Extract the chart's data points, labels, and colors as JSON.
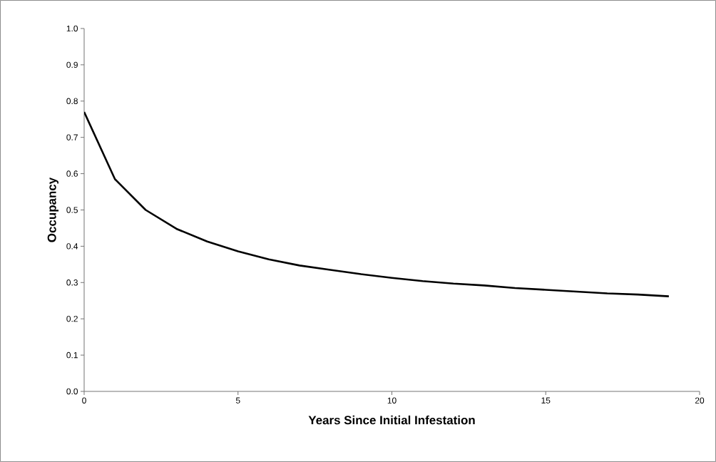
{
  "chart_data": {
    "type": "line",
    "xlabel": "Years Since Initial Infestation",
    "ylabel": "Occupancy",
    "x": [
      0,
      1,
      2,
      3,
      4,
      5,
      6,
      7,
      8,
      9,
      10,
      11,
      12,
      13,
      14,
      15,
      16,
      17,
      18,
      19
    ],
    "series": [
      {
        "color": "#000000",
        "values": [
          0.77,
          0.585,
          0.5,
          0.448,
          0.413,
          0.386,
          0.364,
          0.347,
          0.335,
          0.323,
          0.313,
          0.304,
          0.297,
          0.292,
          0.285,
          0.28,
          0.275,
          0.27,
          0.267,
          0.262
        ]
      }
    ],
    "xlim": [
      0,
      20
    ],
    "ylim": [
      0,
      1.0
    ],
    "xticks": [
      0,
      5,
      10,
      15,
      20
    ],
    "yticks": [
      {
        "value": 0,
        "label": "0.0"
      },
      {
        "value": 0.1,
        "label": "0.1"
      },
      {
        "value": 0.2,
        "label": "0.2"
      },
      {
        "value": 0.3,
        "label": "0.3"
      },
      {
        "value": 0.4,
        "label": "0.4"
      },
      {
        "value": 0.5,
        "label": "0.5"
      },
      {
        "value": 0.6,
        "label": "0.6"
      },
      {
        "value": 0.7,
        "label": "0.7"
      },
      {
        "value": 0.8,
        "label": "0.8"
      },
      {
        "value": 0.9,
        "label": "0.9"
      },
      {
        "value": 1.0,
        "label": "1.0"
      }
    ],
    "grid": false,
    "marker": "none",
    "line_style": "solid"
  }
}
